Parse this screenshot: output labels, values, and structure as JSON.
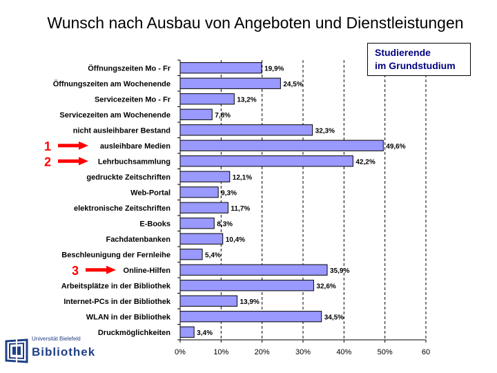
{
  "title": "Wunsch nach Ausbau von Angeboten und Dienstleistungen",
  "legend": {
    "line1": "Studierende",
    "line2": "im Grundstudium"
  },
  "logo": {
    "top_text": "Universität Bielefeld",
    "name": "Bibliothek"
  },
  "colors": {
    "bar_fill": "#9999ff",
    "bar_stroke": "#000000",
    "marker_red": "#ff0000",
    "legend_text": "#000080",
    "logo_blue": "#1f3f86"
  },
  "chart_data": {
    "type": "bar",
    "orientation": "horizontal",
    "categories": [
      "Öffnungszeiten Mo - Fr",
      "Öffnungszeiten am Wochenende",
      "Servicezeiten Mo - Fr",
      "Servicezeiten am Wochenende",
      "nicht ausleihbarer Bestand",
      "ausleihbare Medien",
      "Lehrbuchsammlung",
      "gedruckte Zeitschriften",
      "Web-Portal",
      "elektronische Zeitschriften",
      "E-Books",
      "Fachdatenbanken",
      "Beschleunigung der Fernleihe",
      "Online-Hilfen",
      "Arbeitsplätze in der Bibliothek",
      "Internet-PCs in der Bibliothek",
      "WLAN in der Bibliothek",
      "Druckmöglichkeiten"
    ],
    "values": [
      19.9,
      24.5,
      13.2,
      7.8,
      32.3,
      49.6,
      42.2,
      12.1,
      9.3,
      11.7,
      8.3,
      10.4,
      5.4,
      35.9,
      32.6,
      13.9,
      34.5,
      3.4
    ],
    "data_labels": [
      "19,9%",
      "24,5%",
      "13,2%",
      "7,8%",
      "32,3%",
      "49,6%",
      "42,2%",
      "12,1%",
      "9,3%",
      "11,7%",
      "8,3%",
      "10,4%",
      "5,4%",
      "35,9%",
      "32,6%",
      "13,9%",
      "34,5%",
      "3,4%"
    ],
    "xlim": [
      0,
      60
    ],
    "x_ticks": [
      0,
      10,
      20,
      30,
      40,
      50,
      60
    ],
    "x_tick_labels": [
      "0%",
      "10%",
      "20%",
      "30%",
      "40%",
      "50%",
      "60"
    ],
    "grid": "vertical dashed",
    "legend_position": "top-right",
    "markers": [
      {
        "label": "1",
        "category": "ausleihbare Medien"
      },
      {
        "label": "2",
        "category": "Lehrbuchsammlung"
      },
      {
        "label": "3",
        "category": "Online-Hilfen"
      }
    ]
  }
}
